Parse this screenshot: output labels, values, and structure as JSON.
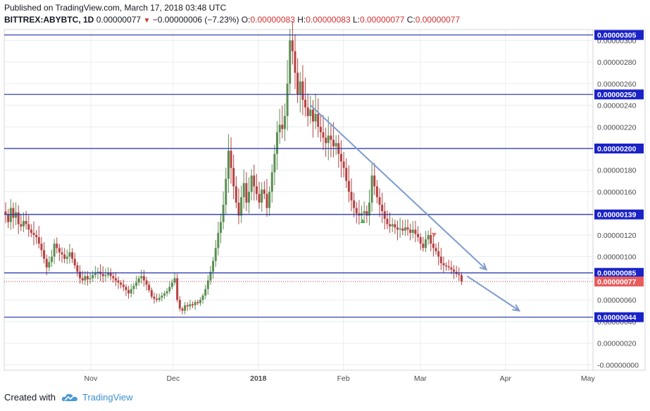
{
  "header": {
    "published": "Published on TradingView.com, March 17, 2018 03:48 UTC",
    "symbol": "BITTREX:ABYBTC, 1D",
    "last": "0.00000077",
    "change_arrow": "▼",
    "change": "−0.00000006 (−7.23%)",
    "o_label": "O:",
    "o_value": "0.00000083",
    "h_label": "H:",
    "h_value": "0.00000083",
    "l_label": "L:",
    "l_value": "0.00000077",
    "c_label": "C:",
    "c_value": "0.00000077"
  },
  "footer": {
    "created_with": "Created with",
    "brand": "TradingView",
    "logo_icon": "tradingview-cloud-icon"
  },
  "colors": {
    "up": "#5b8e52",
    "down": "#b54141",
    "level_line": "#1f2fa8",
    "level_tag_bg": "#1a22c8",
    "last_tag_bg": "#e85c5c",
    "trend_arrow": "#7d9bd0",
    "grid": "#e8ecf0"
  },
  "chart_data": {
    "type": "candlestick",
    "title": "BITTREX:ABYBTC, 1D",
    "x_ticks": [
      "Nov",
      "Dec",
      "2018",
      "Feb",
      "Mar",
      "Apr",
      "May"
    ],
    "y_ticks": [
      "0.00000300",
      "0.00000280",
      "0.00000260",
      "0.00000240",
      "0.00000220",
      "0.00000200",
      "0.00000180",
      "0.00000160",
      "0.00000140",
      "0.00000120",
      "0.00000100",
      "0.00000080",
      "0.00000060",
      "0.00000040",
      "0.00000020",
      "-0.00000000"
    ],
    "ylim": [
      -5e-08,
      3.1e-06
    ],
    "grid": true,
    "horizontal_levels": [
      {
        "value": 3.05e-06,
        "label": "0.00000305"
      },
      {
        "value": 2.5e-06,
        "label": "0.00000250"
      },
      {
        "value": 2e-06,
        "label": "0.00000200"
      },
      {
        "value": 1.39e-06,
        "label": "0.00000139"
      },
      {
        "value": 8.5e-07,
        "label": "0.00000085"
      },
      {
        "value": 4.4e-07,
        "label": "0.00000044"
      }
    ],
    "last_price": {
      "value": 7.7e-07,
      "label": "0.00000077"
    },
    "first_date": "2017-10-01",
    "trend_arrows": [
      {
        "from": {
          "date": "2018-01-20",
          "value": 2.4e-06
        },
        "to": {
          "date": "2018-03-25",
          "value": 8.8e-07
        }
      },
      {
        "from": {
          "date": "2018-03-18",
          "value": 8.2e-07
        },
        "to": {
          "date": "2018-04-06",
          "value": 5e-07
        }
      }
    ],
    "markers": [
      {
        "date": "2018-02-08",
        "value": 1.33e-06,
        "shape": "triangle-up",
        "color": "#4caf50"
      },
      {
        "date": "2018-03-06",
        "value": 1.2e-06,
        "shape": "triangle-down",
        "color": "#e57373"
      }
    ],
    "close_series": [
      1.39e-06,
      1.32e-06,
      1.45e-06,
      1.36e-06,
      1.41e-06,
      1.3e-06,
      1.28e-06,
      1.33e-06,
      1.3e-06,
      1.25e-06,
      1.22e-06,
      1.2e-06,
      1.18e-06,
      1.12e-06,
      1.06e-06,
      9.8e-07,
      9e-07,
      9.5e-07,
      1e-06,
      1.12e-06,
      1.08e-06,
      1.04e-06,
      1.02e-06,
      9.8e-07,
      1e-06,
      1.04e-06,
      9.8e-07,
      9.2e-07,
      8.6e-07,
      8e-07,
      7.8e-07,
      8.2e-07,
      7.9e-07,
      8e-07,
      8.3e-07,
      8.5e-07,
      8.6e-07,
      8.4e-07,
      8.2e-07,
      8.3e-07,
      8.5e-07,
      8.2e-07,
      8e-07,
      7.8e-07,
      7.6e-07,
      7.4e-07,
      7.2e-07,
      6.9e-07,
      6.6e-07,
      7e-07,
      7.3e-07,
      7.6e-07,
      8e-07,
      8.2e-07,
      7.8e-07,
      7.4e-07,
      6.9e-07,
      6.3e-07,
      6.1e-07,
      6e-07,
      6.2e-07,
      6.4e-07,
      6.6e-07,
      6.8e-07,
      7.2e-07,
      7.6e-07,
      8e-07,
      6e-07,
      5.2e-07,
      5e-07,
      5.5e-07,
      5.4e-07,
      5.6e-07,
      5.5e-07,
      5.8e-07,
      5.7e-07,
      6e-07,
      6.4e-07,
      7e-07,
      7.8e-07,
      8.6e-07,
      9.6e-07,
      1.08e-06,
      1.22e-06,
      1.32e-06,
      1.48e-06,
      1.72e-06,
      1.98e-06,
      1.82e-06,
      1.65e-06,
      1.5e-06,
      1.38e-06,
      1.55e-06,
      1.68e-06,
      1.5e-06,
      1.6e-06,
      1.75e-06,
      1.65e-06,
      1.58e-06,
      1.5e-06,
      1.62e-06,
      1.58e-06,
      1.45e-06,
      1.6e-06,
      1.78e-06,
      1.95e-06,
      2.15e-06,
      2.22e-06,
      2.18e-06,
      2.3e-06,
      2.6e-06,
      3e-06,
      2.9e-06,
      2.7e-06,
      2.5e-06,
      2.62e-06,
      2.45e-06,
      2.38e-06,
      2.3e-06,
      2.36e-06,
      2.25e-06,
      2.32e-06,
      2.2e-06,
      2.15e-06,
      2.1e-06,
      2.05e-06,
      2.12e-06,
      2.08e-06,
      2.02e-06,
      2.05e-06,
      1.95e-06,
      1.88e-06,
      1.82e-06,
      1.7e-06,
      1.6e-06,
      1.52e-06,
      1.45e-06,
      1.4e-06,
      1.38e-06,
      1.4e-06,
      1.42e-06,
      1.38e-06,
      1.5e-06,
      1.75e-06,
      1.65e-06,
      1.55e-06,
      1.48e-06,
      1.42e-06,
      1.35e-06,
      1.3e-06,
      1.28e-06,
      1.3e-06,
      1.27e-06,
      1.25e-06,
      1.26e-06,
      1.24e-06,
      1.27e-06,
      1.25e-06,
      1.22e-06,
      1.25e-06,
      1.21e-06,
      1.18e-06,
      1.12e-06,
      1.08e-06,
      1.16e-06,
      1.2e-06,
      1.12e-06,
      1.08e-06,
      1.05e-06,
      1e-06,
      9.4e-07,
      9.2e-07,
      9.1e-07,
      9e-07,
      8.8e-07,
      8.6e-07,
      8.4e-07,
      8.3e-07,
      7.7e-07
    ]
  }
}
